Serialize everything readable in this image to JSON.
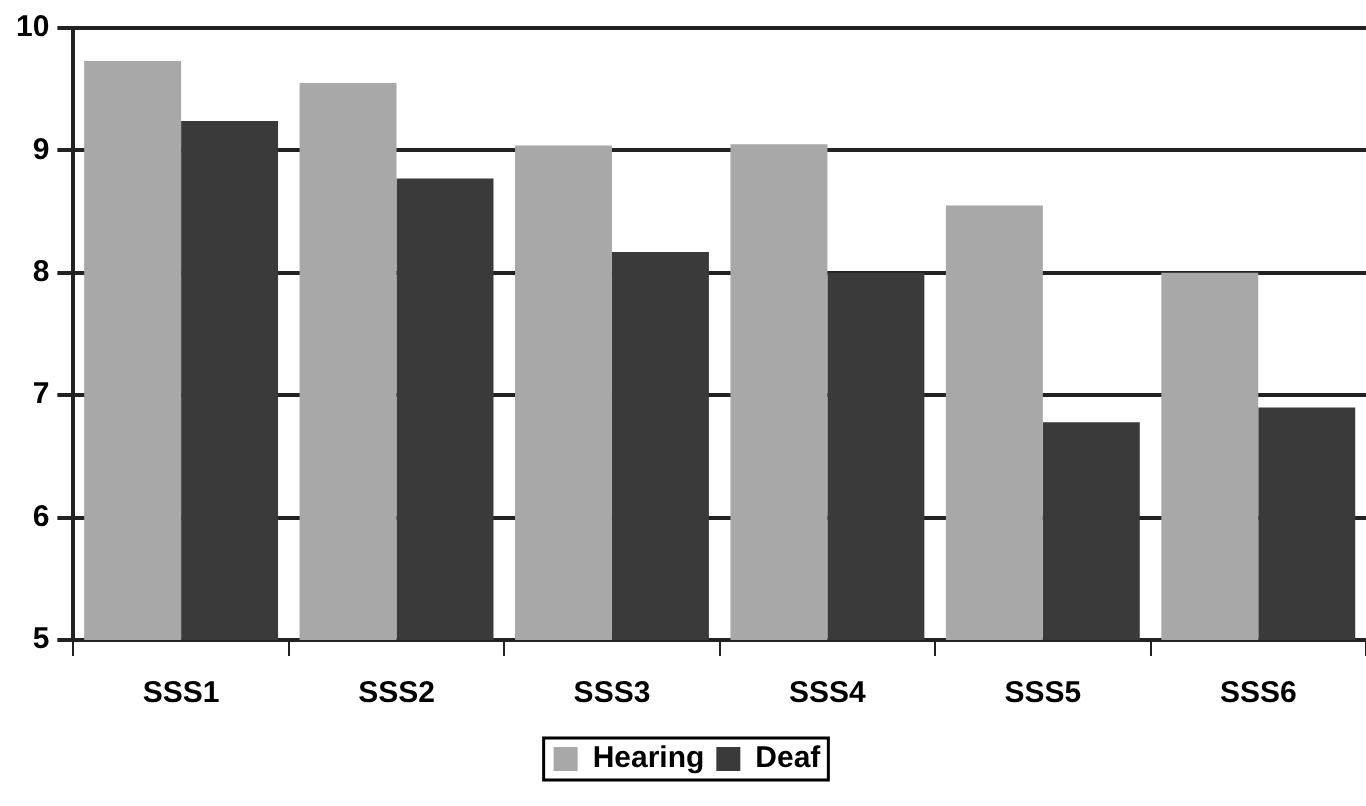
{
  "chart_data": {
    "type": "bar",
    "categories": [
      "SSS1",
      "SSS2",
      "SSS3",
      "SSS4",
      "SSS5",
      "SSS6"
    ],
    "series": [
      {
        "name": "Hearing",
        "color": "#a8a8a8",
        "values": [
          9.73,
          9.55,
          9.04,
          9.05,
          8.55,
          8.0
        ]
      },
      {
        "name": "Deaf",
        "color": "#3a3a3a",
        "values": [
          9.24,
          8.77,
          8.17,
          8.0,
          6.78,
          6.9
        ]
      }
    ],
    "ylim": [
      5,
      10
    ],
    "yticks": [
      5,
      6,
      7,
      8,
      9,
      10
    ],
    "grid": "y",
    "legend": "bottom"
  }
}
